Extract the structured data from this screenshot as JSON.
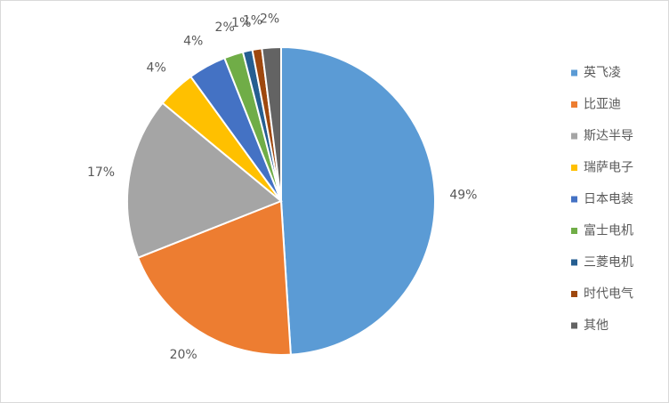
{
  "chart_data": {
    "type": "pie",
    "categories": [
      "英飞凌",
      "比亚迪",
      "斯达半导",
      "瑞萨电子",
      "日本电装",
      "富士电机",
      "三菱电机",
      "时代电气",
      "其他"
    ],
    "values": [
      49,
      20,
      17,
      4,
      4,
      2,
      1,
      1,
      2
    ],
    "value_labels": [
      "49%",
      "20%",
      "17%",
      "4%",
      "4%",
      "2%",
      "1%",
      "1%",
      "2%"
    ],
    "colors": [
      "#5b9bd5",
      "#ed7d31",
      "#a5a5a5",
      "#ffc000",
      "#4472c4",
      "#70ad47",
      "#255e91",
      "#9e480e",
      "#636363"
    ],
    "legend": "right"
  }
}
